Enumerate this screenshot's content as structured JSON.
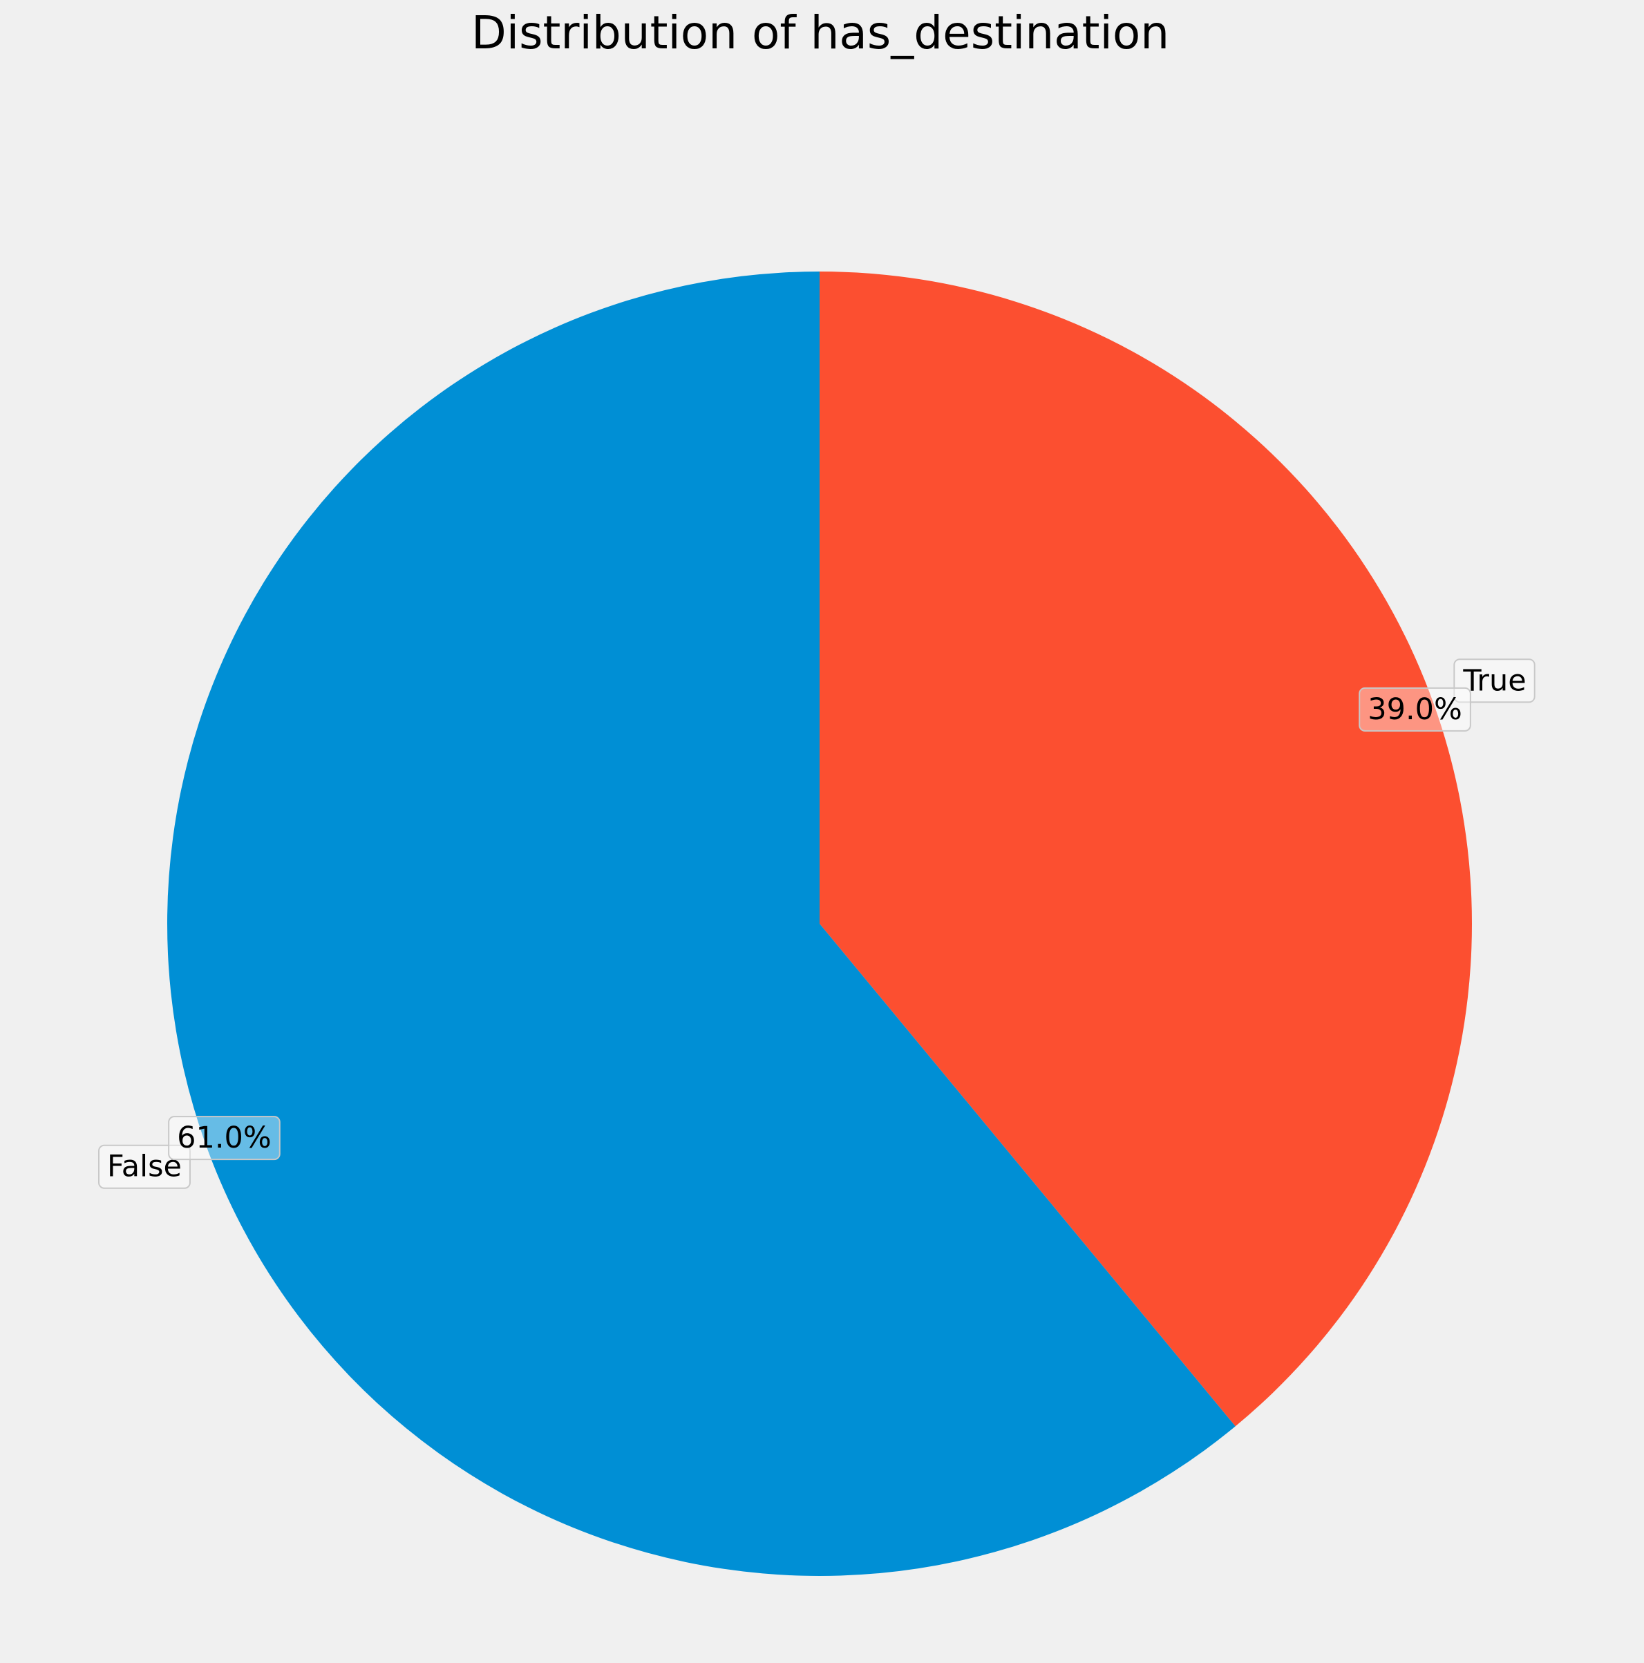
{
  "chart_data": {
    "type": "pie",
    "title": "Distribution of has_destination",
    "slices": [
      {
        "label": "True",
        "value": 39.0,
        "pct_label": "39.0%",
        "color": "#fc4f30"
      },
      {
        "label": "False",
        "value": 61.0,
        "pct_label": "61.0%",
        "color": "#008fd5"
      }
    ],
    "start_angle": "top (12 o'clock)",
    "direction": "clockwise",
    "background": "#f0f0f0"
  }
}
